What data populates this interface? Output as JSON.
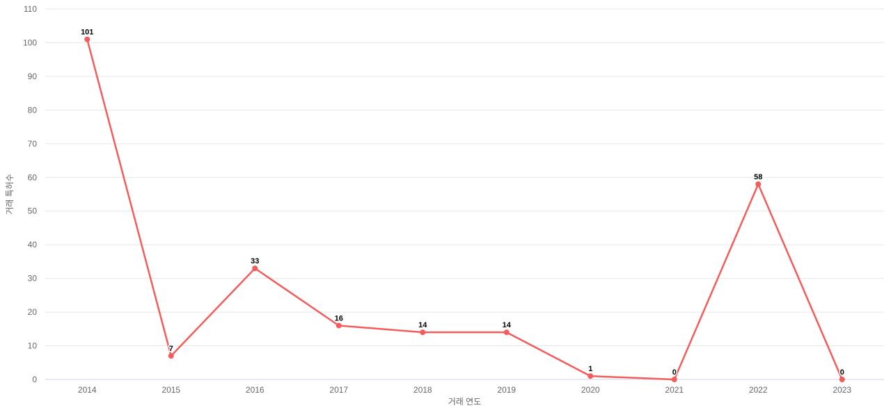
{
  "chart_data": {
    "type": "line",
    "categories": [
      "2014",
      "2015",
      "2016",
      "2017",
      "2018",
      "2019",
      "2020",
      "2021",
      "2022",
      "2023"
    ],
    "values": [
      101,
      7,
      33,
      16,
      14,
      14,
      1,
      0,
      58,
      0
    ],
    "data_labels": [
      "101",
      "7",
      "33",
      "16",
      "14",
      "14",
      "1",
      "0",
      "58",
      "0"
    ],
    "title": "",
    "xlabel": "거래 연도",
    "ylabel": "거래 특허수",
    "ylim": [
      0,
      110
    ],
    "y_tick_interval": 10,
    "y_ticks": [
      0,
      10,
      20,
      30,
      40,
      50,
      60,
      70,
      80,
      90,
      100,
      110
    ],
    "grid": true,
    "legend_position": "none",
    "colors": {
      "series": "#f45c5c",
      "grid_line": "#e6e6e6",
      "axis_line": "#ccd6eb",
      "tick_label": "#666666",
      "data_label": "#000000",
      "background": "#ffffff"
    }
  }
}
